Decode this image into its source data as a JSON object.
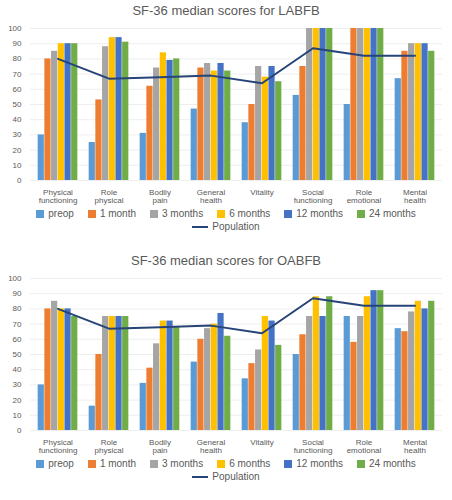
{
  "chart_data": [
    {
      "type": "bar",
      "title": "SF-36 median scores for LABFB",
      "categories": [
        "Physical functioning",
        "Role physical",
        "Bodily pain",
        "General health",
        "Vitality",
        "Social functioning",
        "Role emotional",
        "Mental health"
      ],
      "series": [
        {
          "name": "preop",
          "color": "#5B9BD5",
          "type": "bar",
          "values": [
            30,
            25,
            31,
            47,
            38,
            56,
            50,
            67
          ]
        },
        {
          "name": "1 month",
          "color": "#ED7D31",
          "type": "bar",
          "values": [
            80,
            53,
            62,
            74,
            50,
            75,
            100,
            85
          ]
        },
        {
          "name": "3 months",
          "color": "#A5A5A5",
          "type": "bar",
          "values": [
            85,
            88,
            74,
            77,
            75,
            100,
            100,
            90
          ]
        },
        {
          "name": "6 months",
          "color": "#FFC000",
          "type": "bar",
          "values": [
            90,
            94,
            84,
            72,
            68,
            100,
            100,
            90
          ]
        },
        {
          "name": "12 months",
          "color": "#4472C4",
          "type": "bar",
          "values": [
            90,
            94,
            79,
            77,
            75,
            100,
            100,
            90
          ]
        },
        {
          "name": "24 months",
          "color": "#70AD47",
          "type": "bar",
          "values": [
            90,
            91,
            80,
            72,
            65,
            100,
            100,
            85
          ]
        },
        {
          "name": "Population",
          "color": "#264478",
          "type": "line",
          "values": [
            80,
            67,
            68,
            69,
            64,
            87,
            82,
            82
          ]
        }
      ],
      "ylim": [
        0,
        100
      ],
      "yticks": [
        0,
        10,
        20,
        30,
        40,
        50,
        60,
        70,
        80,
        90,
        100
      ],
      "grid": true,
      "legend": "bottom"
    },
    {
      "type": "bar",
      "title": "SF-36 median scores for OABFB",
      "categories": [
        "Physical functioning",
        "Role physical",
        "Bodily pain",
        "General health",
        "Vitality",
        "Social functioning",
        "Role emotional",
        "Mental health"
      ],
      "series": [
        {
          "name": "preop",
          "color": "#5B9BD5",
          "type": "bar",
          "values": [
            30,
            16,
            31,
            45,
            34,
            50,
            75,
            67
          ]
        },
        {
          "name": "1 month",
          "color": "#ED7D31",
          "type": "bar",
          "values": [
            80,
            50,
            41,
            60,
            44,
            63,
            58,
            65
          ]
        },
        {
          "name": "3 months",
          "color": "#A5A5A5",
          "type": "bar",
          "values": [
            85,
            75,
            57,
            67,
            53,
            75,
            75,
            78
          ]
        },
        {
          "name": "6 months",
          "color": "#FFC000",
          "type": "bar",
          "values": [
            80,
            75,
            72,
            70,
            75,
            88,
            88,
            85
          ]
        },
        {
          "name": "12 months",
          "color": "#4472C4",
          "type": "bar",
          "values": [
            80,
            75,
            72,
            77,
            72,
            75,
            92,
            80
          ]
        },
        {
          "name": "24 months",
          "color": "#70AD47",
          "type": "bar",
          "values": [
            75,
            75,
            68,
            62,
            56,
            88,
            92,
            85
          ]
        },
        {
          "name": "Population",
          "color": "#264478",
          "type": "line",
          "values": [
            80,
            67,
            68,
            69,
            64,
            87,
            82,
            82
          ]
        }
      ],
      "ylim": [
        0,
        100
      ],
      "yticks": [
        0,
        10,
        20,
        30,
        40,
        50,
        60,
        70,
        80,
        90,
        100
      ],
      "grid": true,
      "legend": "bottom"
    }
  ]
}
